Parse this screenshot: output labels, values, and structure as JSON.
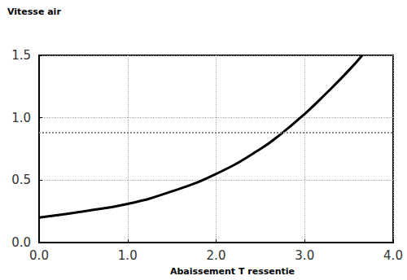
{
  "chart_data": {
    "type": "line",
    "xlabel": "Abaissement T ressentie",
    "ylabel": "Vitesse air",
    "xlim": [
      0,
      4
    ],
    "xticks": [
      {
        "value": 0,
        "label": "0.0"
      },
      {
        "value": 1,
        "label": "1.0"
      },
      {
        "value": 2,
        "label": "2.0"
      },
      {
        "value": 3,
        "label": "3.0"
      },
      {
        "value": 4,
        "label": "4.0"
      }
    ],
    "ylim": [
      0,
      1.5
    ],
    "yticks": [
      {
        "value": 0,
        "label": "0.0"
      },
      {
        "value": 0.5,
        "label": "0.5"
      },
      {
        "value": 1,
        "label": "1.0"
      },
      {
        "value": 1.5,
        "label": "1.5"
      }
    ],
    "grid": true,
    "series": [
      {
        "color": "#000000",
        "line_style": "solid",
        "x": [
          0,
          0.5,
          1.0,
          1.5,
          2.0,
          2.5,
          2.75,
          3.0,
          3.25,
          3.5,
          3.65
        ],
        "values": [
          0.2,
          0.25,
          0.31,
          0.41,
          0.55,
          0.75,
          0.88,
          1.03,
          1.2,
          1.38,
          1.5
        ]
      },
      {
        "color": "#888888",
        "line_style": "dotted",
        "x": [
          0,
          4
        ],
        "values": [
          0.88,
          0.88
        ]
      }
    ]
  }
}
